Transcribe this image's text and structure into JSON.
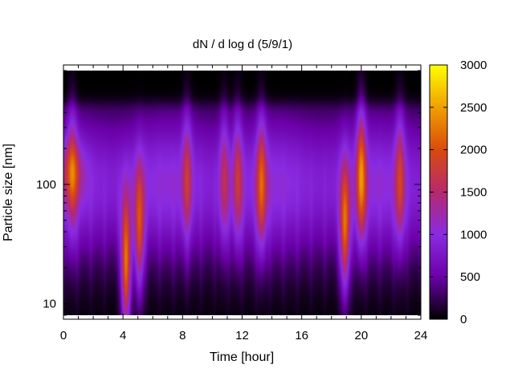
{
  "chart_data": {
    "type": "heatmap",
    "title": "dN / d log d (5/9/1)",
    "xlabel": "Time [hour]",
    "ylabel": "Particle size [nm]",
    "x_ticks": [
      0,
      4,
      8,
      12,
      16,
      20,
      24
    ],
    "xlim": [
      0,
      24
    ],
    "y_scale": "log",
    "ylim": [
      8,
      900
    ],
    "y_ticks": [
      10,
      100
    ],
    "colorbar": {
      "ticks": [
        0,
        500,
        1000,
        1500,
        2000,
        2500,
        3000
      ],
      "range": [
        0,
        3000
      ],
      "palette": [
        "#000000",
        "#6a00a8",
        "#8a2be2",
        "#b52a6e",
        "#d94a0e",
        "#f0a000",
        "#ffff00"
      ]
    },
    "features": [
      {
        "name": "accumulation band",
        "time_start": 0,
        "time_end": 24,
        "size_center": 100,
        "level": 1000
      },
      {
        "name": "burst",
        "time_center": 4.2,
        "size_center": 20,
        "level": 2900
      },
      {
        "name": "burst",
        "time_center": 5.1,
        "size_center": 40,
        "level": 2300
      },
      {
        "name": "burst",
        "time_center": 8.3,
        "size_center": 120,
        "level": 1700
      },
      {
        "name": "burst",
        "time_center": 10.8,
        "size_center": 110,
        "level": 1700
      },
      {
        "name": "burst",
        "time_center": 11.7,
        "size_center": 110,
        "level": 1800
      },
      {
        "name": "burst",
        "time_center": 13.3,
        "size_center": 100,
        "level": 2100
      },
      {
        "name": "burst",
        "time_center": 18.9,
        "size_center": 40,
        "level": 2500
      },
      {
        "name": "burst",
        "time_center": 20.0,
        "size_center": 120,
        "level": 2400
      },
      {
        "name": "burst",
        "time_center": 22.6,
        "size_center": 110,
        "level": 1900
      },
      {
        "name": "early band",
        "time_center": 0.6,
        "size_center": 130,
        "level": 1700
      }
    ]
  }
}
